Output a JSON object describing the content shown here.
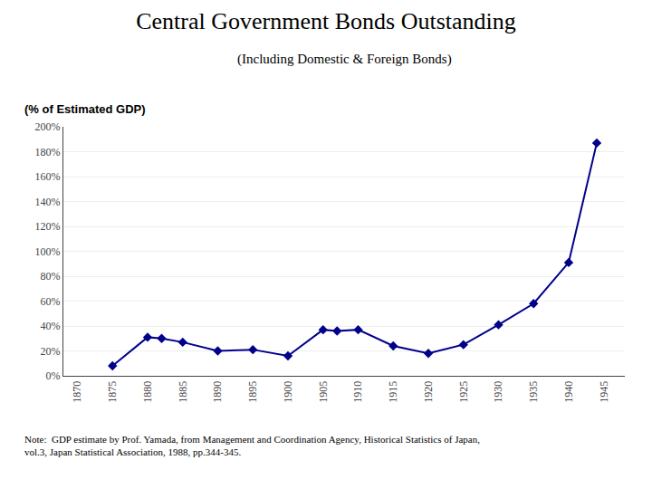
{
  "chart_data": {
    "type": "line",
    "title": "Central Government Bonds Outstanding",
    "subtitle": "(Including Domestic & Foreign Bonds)",
    "ylabel": "(% of Estimated GDP)",
    "x": [
      1875,
      1880,
      1882,
      1885,
      1890,
      1895,
      1900,
      1905,
      1907,
      1910,
      1915,
      1920,
      1925,
      1930,
      1935,
      1940,
      1944
    ],
    "values": [
      8,
      31,
      30,
      27,
      20,
      21,
      16,
      37,
      36,
      37,
      24,
      18,
      25,
      41,
      58,
      91,
      187
    ],
    "color": "#00008B",
    "marker": "diamond",
    "xlim": [
      1868,
      1948
    ],
    "ylim": [
      0,
      200
    ],
    "xticks": [
      1870,
      1875,
      1880,
      1885,
      1890,
      1895,
      1900,
      1905,
      1910,
      1915,
      1920,
      1925,
      1930,
      1935,
      1940,
      1945
    ],
    "yticks": [
      {
        "value": 0,
        "label": "0%"
      },
      {
        "value": 20,
        "label": "20%"
      },
      {
        "value": 40,
        "label": "40%"
      },
      {
        "value": 60,
        "label": "60%"
      },
      {
        "value": 80,
        "label": "80%"
      },
      {
        "value": 100,
        "label": "100%"
      },
      {
        "value": 120,
        "label": "120%"
      },
      {
        "value": 140,
        "label": "140%"
      },
      {
        "value": 160,
        "label": "160%"
      },
      {
        "value": 180,
        "label": "180%"
      },
      {
        "value": 200,
        "label": "200%"
      }
    ],
    "grid": "y",
    "annotations": [
      "Note:  GDP estimate by Prof. Yamada, from Management and Coordination Agency, Historical Statistics of Japan,",
      "vol.3, Japan Statistical Association, 1988, pp.344-345."
    ]
  }
}
